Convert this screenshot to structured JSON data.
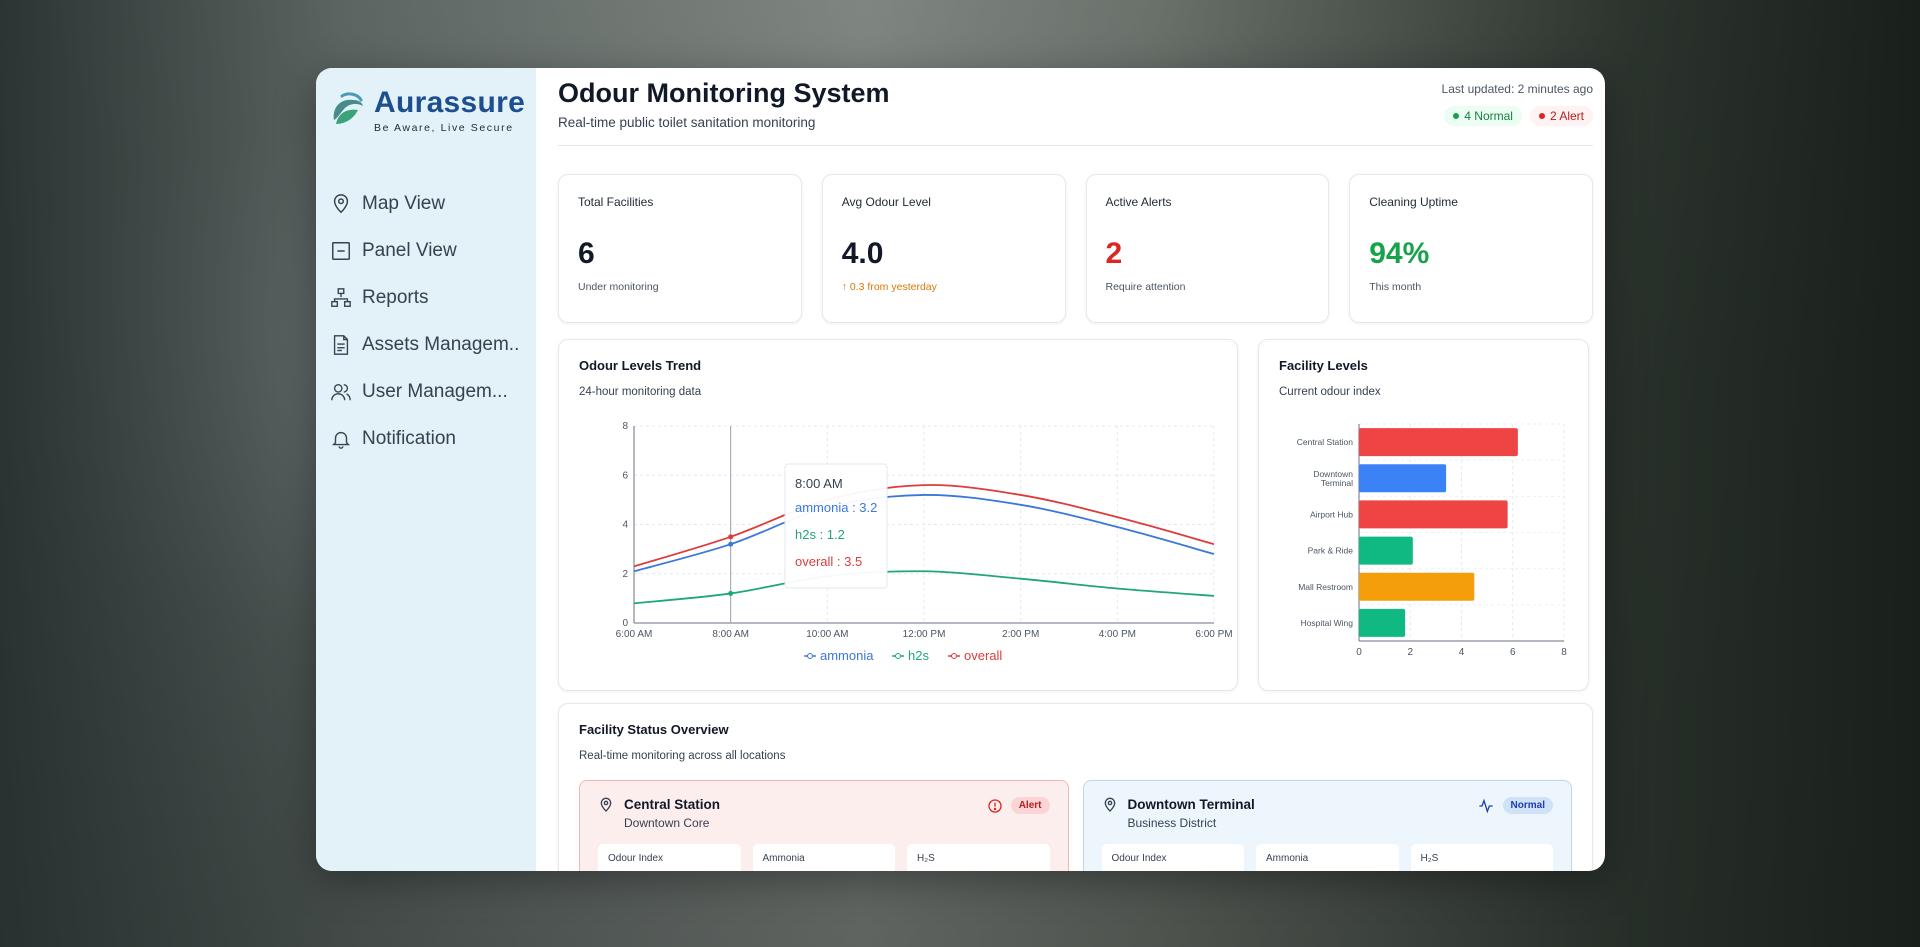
{
  "brand": {
    "name": "Aurassure",
    "tagline": "Be Aware, Live Secure"
  },
  "nav": [
    {
      "label": "Map View",
      "icon": "map-pin-icon"
    },
    {
      "label": "Panel View",
      "icon": "panel-icon"
    },
    {
      "label": "Reports",
      "icon": "hierarchy-icon"
    },
    {
      "label": "Assets Managem..",
      "icon": "document-icon"
    },
    {
      "label": "User Managem...",
      "icon": "users-icon"
    },
    {
      "label": "Notification",
      "icon": "bell-icon"
    }
  ],
  "header": {
    "title": "Odour Monitoring System",
    "subtitle": "Real-time public toilet sanitation monitoring",
    "updated": "Last updated: 2 minutes ago",
    "normal_pill": "4 Normal",
    "alert_pill": "2 Alert"
  },
  "stats": [
    {
      "label": "Total Facilities",
      "value": "6",
      "sub": "Under monitoring"
    },
    {
      "label": "Avg Odour Level",
      "value": "4.0",
      "sub": "↑ 0.3 from yesterday"
    },
    {
      "label": "Active Alerts",
      "value": "2",
      "sub": "Require attention"
    },
    {
      "label": "Cleaning Uptime",
      "value": "94%",
      "sub": "This month"
    }
  ],
  "trend": {
    "title": "Odour Levels Trend",
    "subtitle": "24-hour monitoring data",
    "tooltip": {
      "time": "8:00 AM",
      "ammonia": "ammonia : 3.2",
      "h2s": "h2s : 1.2",
      "overall": "overall : 3.5"
    }
  },
  "levels": {
    "title": "Facility Levels",
    "subtitle": "Current odour index"
  },
  "overview": {
    "title": "Facility Status Overview",
    "subtitle": "Real-time monitoring across all locations",
    "facilities": [
      {
        "name": "Central Station",
        "area": "Downtown Core",
        "status": "Alert",
        "m1": "Odour Index",
        "m2": "Ammonia",
        "m3": "H₂S"
      },
      {
        "name": "Downtown Terminal",
        "area": "Business District",
        "status": "Normal",
        "m1": "Odour Index",
        "m2": "Ammonia",
        "m3": "H₂S"
      }
    ]
  },
  "colors": {
    "ammonia": "#3b78d8",
    "h2s": "#1fa776",
    "overall": "#dc3c3c",
    "orange": "#f39c12",
    "green": "#10b981"
  },
  "chart_data": [
    {
      "type": "line",
      "title": "Odour Levels Trend",
      "x": [
        "6:00 AM",
        "8:00 AM",
        "10:00 AM",
        "12:00 PM",
        "2:00 PM",
        "4:00 PM",
        "6:00 PM"
      ],
      "ylim": [
        0,
        8
      ],
      "yticks": [
        0,
        2,
        4,
        6,
        8
      ],
      "grid": true,
      "legend": "bottom",
      "series": [
        {
          "name": "ammonia",
          "values": [
            2.1,
            3.2,
            4.7,
            5.2,
            4.8,
            3.9,
            2.8
          ]
        },
        {
          "name": "h2s",
          "values": [
            0.8,
            1.2,
            1.9,
            2.1,
            1.8,
            1.4,
            1.1
          ]
        },
        {
          "name": "overall",
          "values": [
            2.3,
            3.5,
            5.0,
            5.6,
            5.2,
            4.3,
            3.2
          ]
        }
      ]
    },
    {
      "type": "bar",
      "orientation": "horizontal",
      "title": "Facility Levels",
      "categories": [
        "Central Station",
        "Downtown Terminal",
        "Airport Hub",
        "Park & Ride",
        "Mall Restroom",
        "Hospital Wing"
      ],
      "values": [
        6.2,
        3.4,
        5.8,
        2.1,
        4.5,
        1.8
      ],
      "bar_colors": [
        "#ef4444",
        "#3b82f6",
        "#ef4444",
        "#10b981",
        "#f59e0b",
        "#10b981"
      ],
      "xlim": [
        0,
        8
      ],
      "xticks": [
        0,
        2,
        4,
        6,
        8
      ],
      "grid": true
    }
  ]
}
